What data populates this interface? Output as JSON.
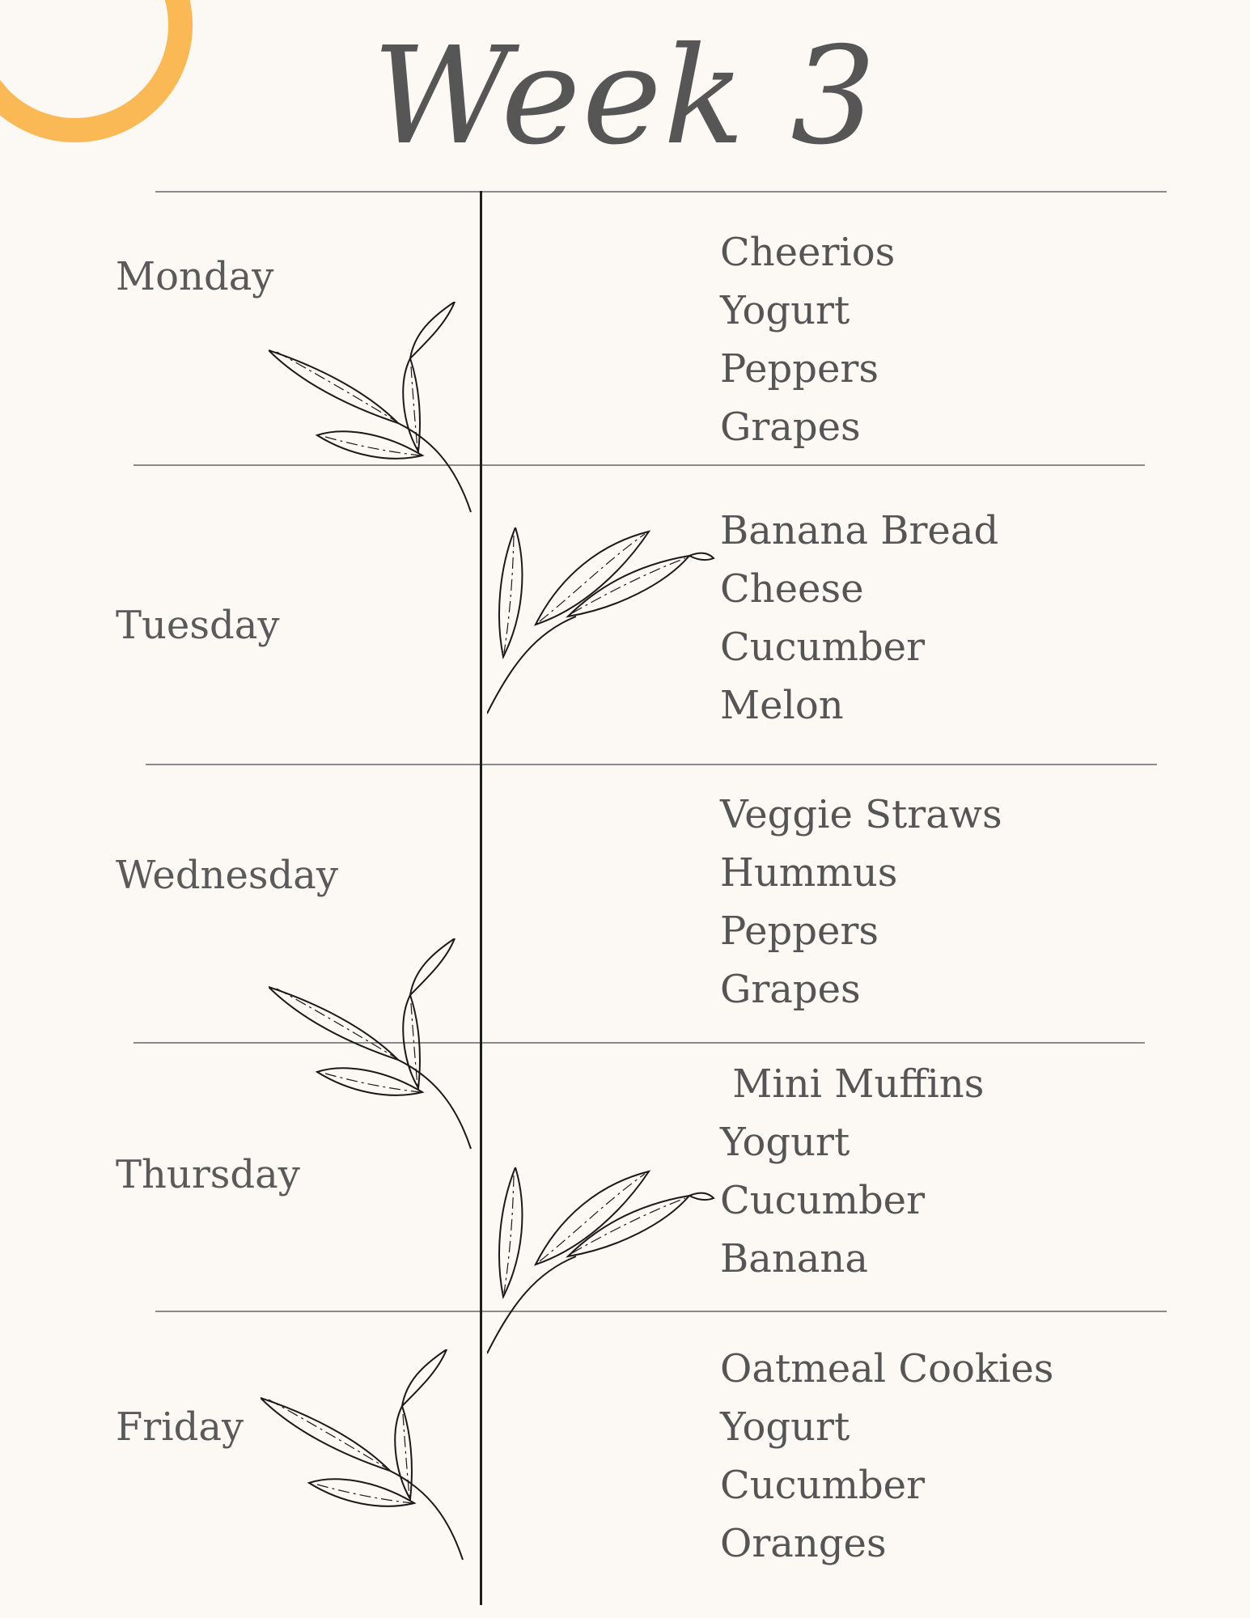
{
  "title": "Week 3",
  "colors": {
    "background": "#fcf8f4",
    "accent_ring": "#fbb955",
    "text": "#555555",
    "divider": "#8a8a8a"
  },
  "decoration": {
    "corner": "orange-ring",
    "plants": "leaf-sprig-line-art"
  },
  "days": [
    {
      "name": "Monday",
      "items": [
        "Cheerios",
        "Yogurt",
        "Peppers",
        "Grapes"
      ]
    },
    {
      "name": "Tuesday",
      "items": [
        "Banana Bread",
        "Cheese",
        "Cucumber",
        "Melon"
      ]
    },
    {
      "name": "Wednesday",
      "items": [
        "Veggie Straws",
        "Hummus",
        "Peppers",
        "Grapes"
      ]
    },
    {
      "name": "Thursday",
      "items": [
        " Mini Muffins",
        "Yogurt",
        "Cucumber",
        "Banana"
      ]
    },
    {
      "name": "Friday",
      "items": [
        "Oatmeal Cookies",
        "Yogurt",
        "Cucumber",
        "Oranges"
      ]
    }
  ]
}
